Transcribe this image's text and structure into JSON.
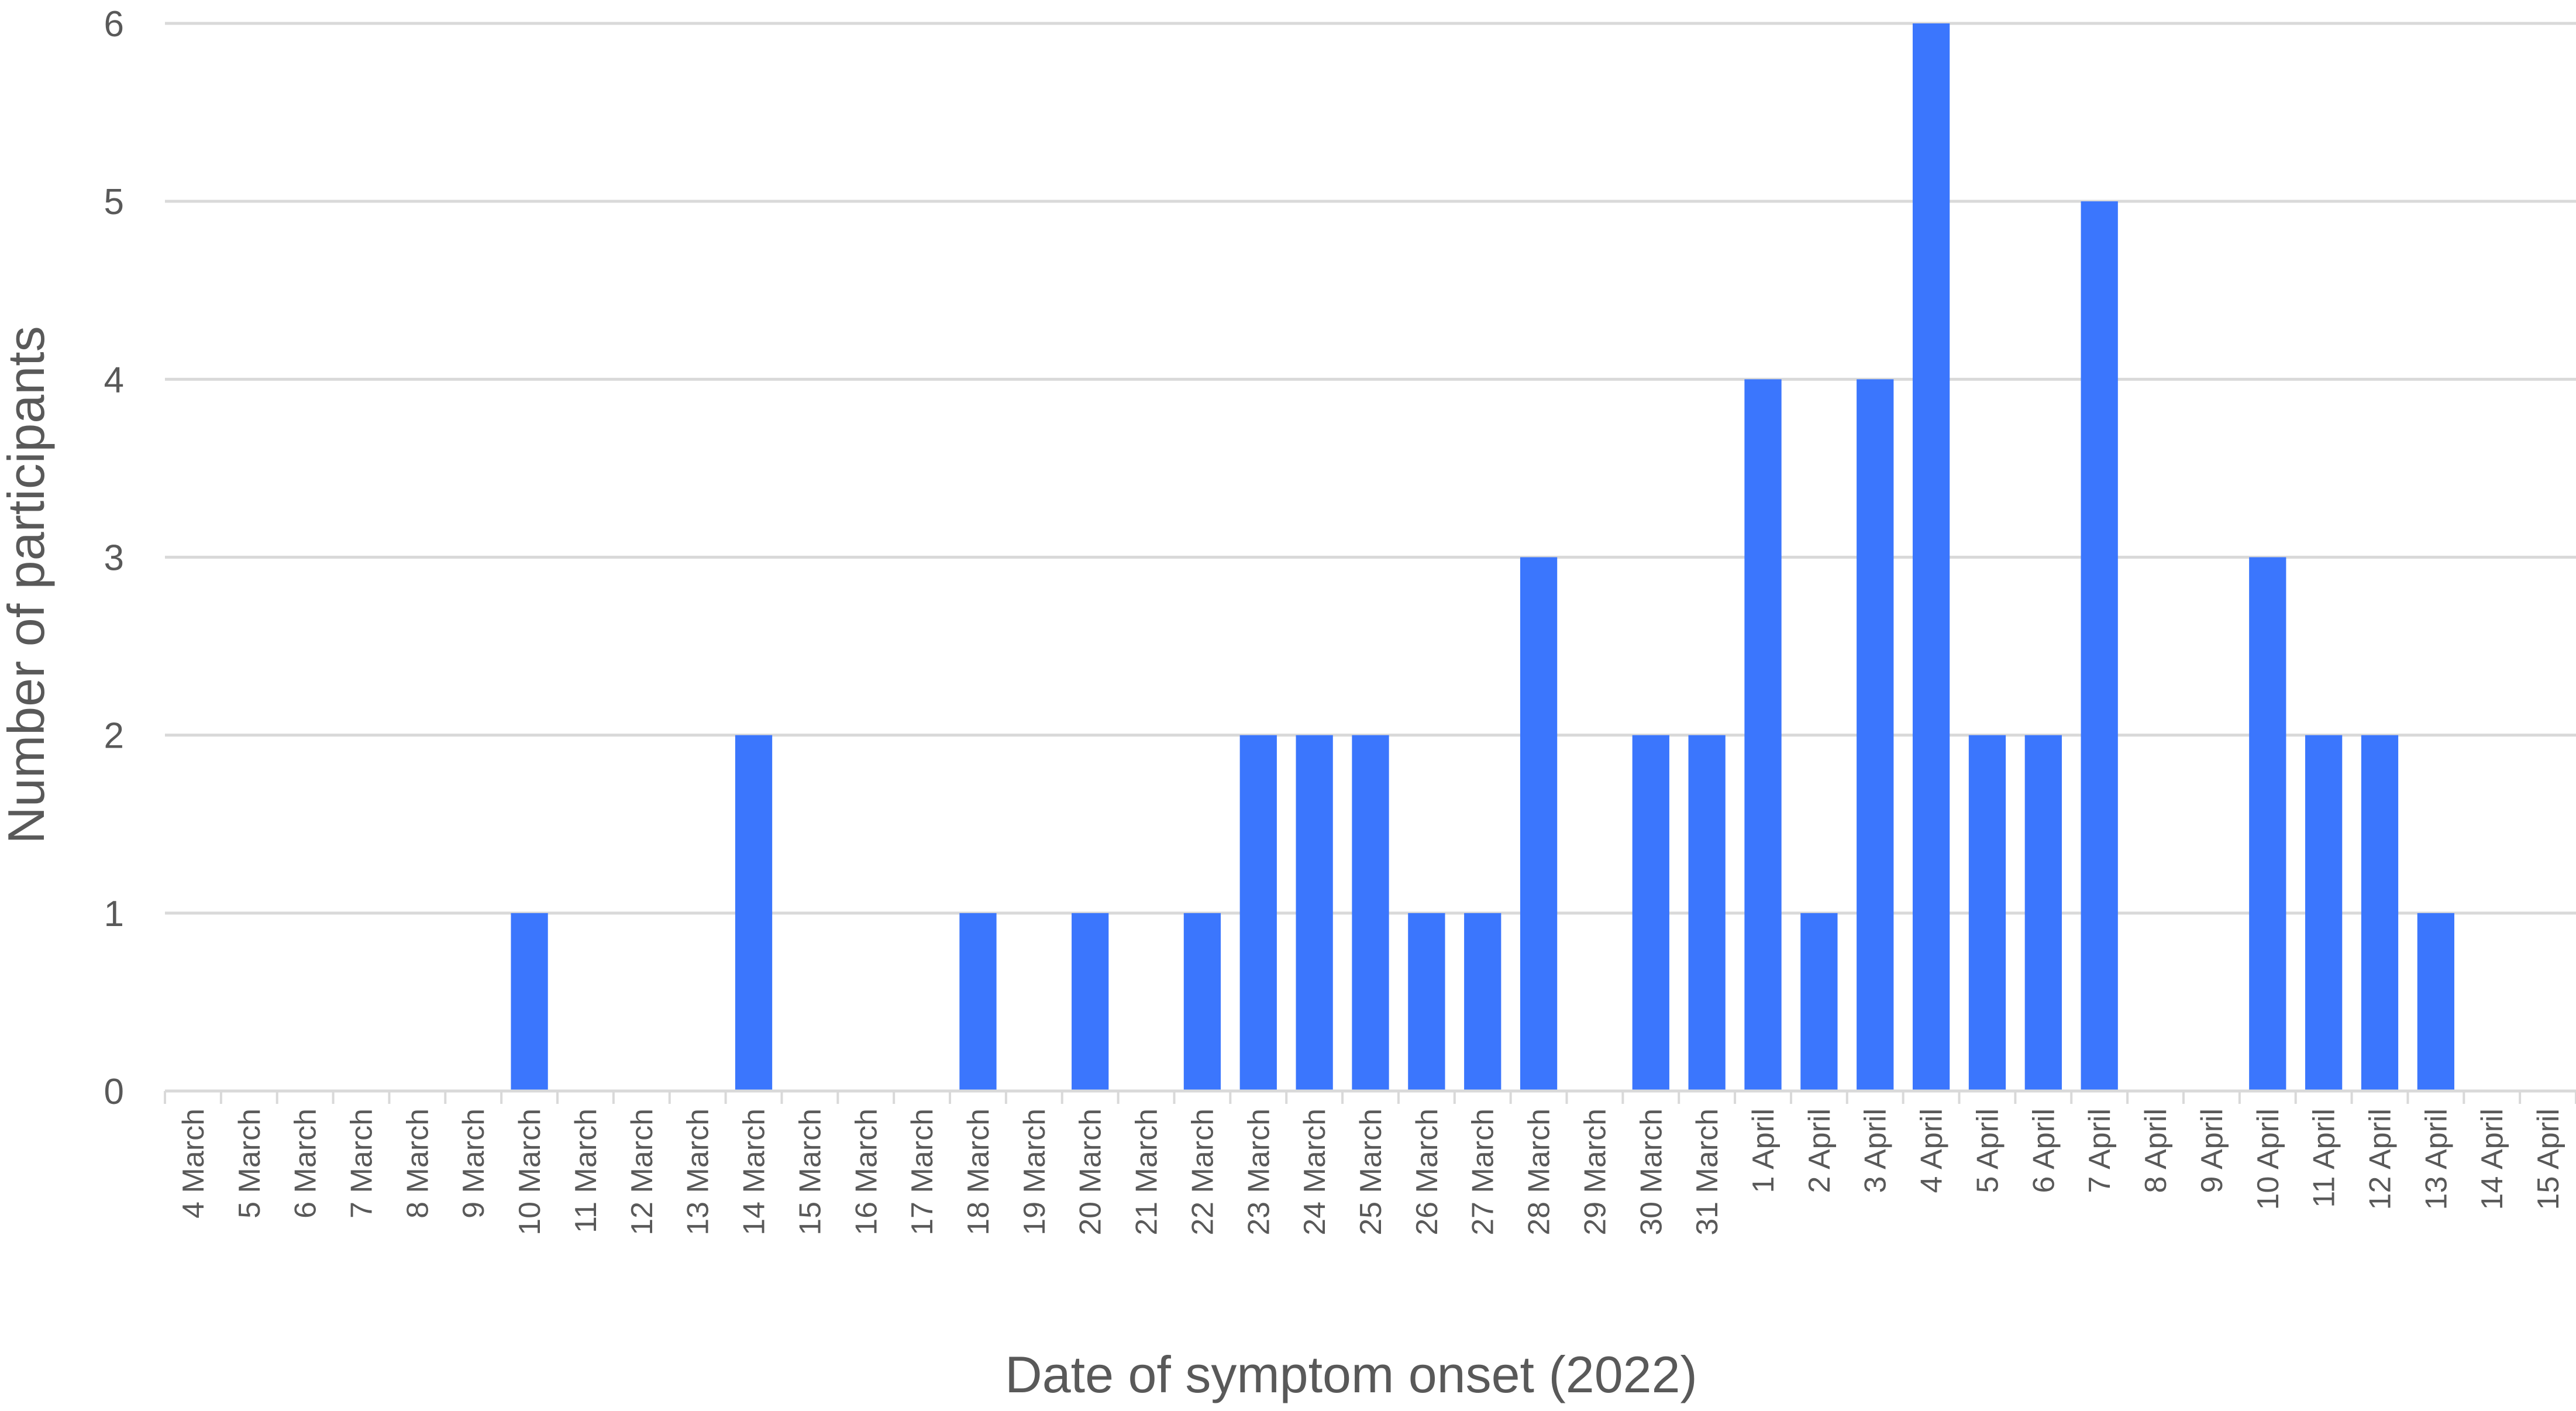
{
  "chart_data": {
    "type": "bar",
    "xlabel": "Date of symptom onset (2022)",
    "ylabel": "Number of participants",
    "ylim": [
      0,
      6
    ],
    "yticks": [
      0,
      1,
      2,
      3,
      4,
      5,
      6
    ],
    "grid": true,
    "bar_color": "#3b76fd",
    "categories": [
      "4 March",
      "5 March",
      "6 March",
      "7 March",
      "8 March",
      "9 March",
      "10 March",
      "11 March",
      "12 March",
      "13 March",
      "14 March",
      "15 March",
      "16 March",
      "17 March",
      "18 March",
      "19 March",
      "20 March",
      "21 March",
      "22 March",
      "23 March",
      "24 March",
      "25 March",
      "26 March",
      "27 March",
      "28 March",
      "29 March",
      "30 March",
      "31 March",
      "1 April",
      "2 April",
      "3 April",
      "4 April",
      "5 April",
      "6 April",
      "7 April",
      "8 April",
      "9 April",
      "10 April",
      "11 April",
      "12 April",
      "13 April",
      "14 April",
      "15 April"
    ],
    "values": [
      0,
      0,
      0,
      0,
      0,
      0,
      1,
      0,
      0,
      0,
      2,
      0,
      0,
      0,
      1,
      0,
      1,
      0,
      1,
      2,
      2,
      2,
      1,
      1,
      3,
      0,
      2,
      2,
      4,
      1,
      4,
      6,
      2,
      2,
      5,
      0,
      0,
      3,
      2,
      2,
      1,
      0,
      0
    ]
  }
}
